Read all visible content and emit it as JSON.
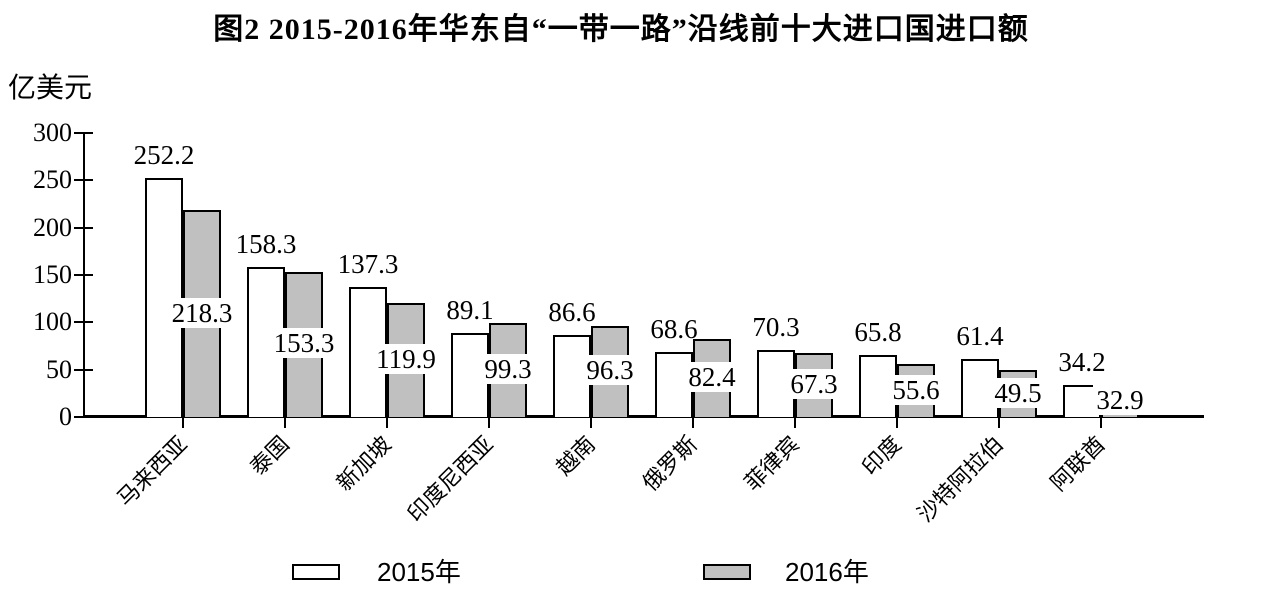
{
  "title": "图2 2015-2016年华东自“一带一路”沿线前十大进口国进口额",
  "y_unit": "亿美元",
  "legend": [
    {
      "label": "2015年",
      "color": "#ffffff"
    },
    {
      "label": "2016年",
      "color": "#c0c0c0"
    }
  ],
  "colors": {
    "bar_2015_fill": "#ffffff",
    "bar_2016_fill": "#c0c0c0",
    "bar_border": "#000000",
    "axis": "#000000"
  },
  "chart_data": {
    "type": "bar",
    "title": "图2 2015-2016年华东自“一带一路”沿线前十大进口国进口额",
    "categories": [
      "马来西亚",
      "泰国",
      "新加坡",
      "印度尼西亚",
      "越南",
      "俄罗斯",
      "菲律宾",
      "印度",
      "沙特阿拉伯",
      "阿联酋"
    ],
    "series": [
      {
        "name": "2015年",
        "fill": "#ffffff",
        "values": [
          252.2,
          158.3,
          137.3,
          89.1,
          86.6,
          68.6,
          70.3,
          65.8,
          61.4,
          34.2
        ]
      },
      {
        "name": "2016年",
        "fill": "#c0c0c0",
        "values": [
          218.3,
          153.3,
          119.9,
          99.3,
          96.3,
          82.4,
          67.3,
          55.6,
          49.5,
          32.9
        ]
      }
    ],
    "xlabel": "",
    "ylabel": "亿美元",
    "ylim": [
      0,
      300
    ],
    "yticks": [
      0,
      50,
      100,
      150,
      200,
      250,
      300
    ],
    "grid": false,
    "bar_labels": true,
    "legend_position": "bottom",
    "category_label_rotation_deg": 45
  }
}
